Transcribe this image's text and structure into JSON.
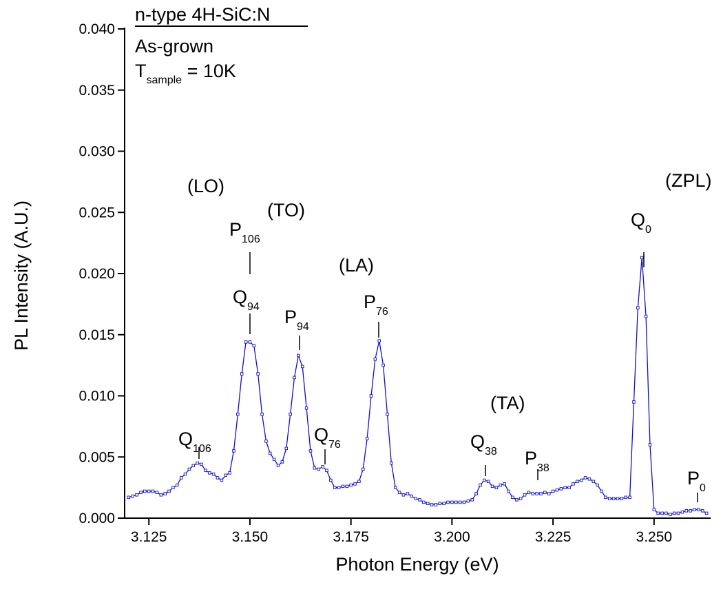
{
  "chart_data": {
    "type": "line",
    "xlabel": "Photon Energy (eV)",
    "ylabel": "PL Intensity (A.U.)",
    "xlim": [
      3.119,
      3.264
    ],
    "ylim": [
      0,
      0.04
    ],
    "xticks": [
      3.125,
      {
        "value": 3.15,
        "label": "3.150"
      },
      3.175,
      {
        "value": 3.2,
        "label": "3.200"
      },
      3.225,
      {
        "value": 3.25,
        "label": "3.250"
      }
    ],
    "yticks": [
      {
        "value": 0,
        "label": "0.000"
      },
      {
        "value": 0.005,
        "label": "0.005"
      },
      {
        "value": 0.01,
        "label": "0.010"
      },
      {
        "value": 0.015,
        "label": "0.015"
      },
      {
        "value": 0.02,
        "label": "0.020"
      },
      {
        "value": 0.025,
        "label": "0.025"
      },
      {
        "value": 0.03,
        "label": "0.030"
      },
      {
        "value": 0.035,
        "label": "0.035"
      },
      {
        "value": 0.04,
        "label": "0.040"
      }
    ],
    "color": "#1010c8",
    "x": [
      3.12,
      3.121,
      3.122,
      3.123,
      3.124,
      3.125,
      3.126,
      3.127,
      3.128,
      3.129,
      3.13,
      3.131,
      3.132,
      3.133,
      3.134,
      3.135,
      3.136,
      3.137,
      3.138,
      3.139,
      3.14,
      3.141,
      3.142,
      3.143,
      3.144,
      3.145,
      3.146,
      3.147,
      3.148,
      3.149,
      3.15,
      3.151,
      3.152,
      3.153,
      3.154,
      3.155,
      3.156,
      3.157,
      3.158,
      3.159,
      3.16,
      3.161,
      3.162,
      3.163,
      3.164,
      3.165,
      3.166,
      3.167,
      3.168,
      3.169,
      3.17,
      3.171,
      3.172,
      3.173,
      3.174,
      3.175,
      3.176,
      3.177,
      3.178,
      3.179,
      3.18,
      3.181,
      3.182,
      3.183,
      3.184,
      3.185,
      3.186,
      3.187,
      3.188,
      3.189,
      3.19,
      3.191,
      3.192,
      3.193,
      3.194,
      3.195,
      3.196,
      3.197,
      3.198,
      3.199,
      3.2,
      3.201,
      3.202,
      3.203,
      3.204,
      3.205,
      3.206,
      3.207,
      3.208,
      3.209,
      3.21,
      3.211,
      3.212,
      3.213,
      3.214,
      3.215,
      3.216,
      3.217,
      3.218,
      3.219,
      3.22,
      3.221,
      3.222,
      3.223,
      3.224,
      3.225,
      3.226,
      3.227,
      3.228,
      3.229,
      3.23,
      3.231,
      3.232,
      3.233,
      3.234,
      3.235,
      3.236,
      3.237,
      3.238,
      3.239,
      3.24,
      3.241,
      3.242,
      3.243,
      3.244,
      3.245,
      3.246,
      3.247,
      3.248,
      3.249,
      3.25,
      3.251,
      3.252,
      3.253,
      3.254,
      3.255,
      3.256,
      3.257,
      3.258,
      3.259,
      3.26,
      3.261,
      3.262,
      3.263
    ],
    "values": [
      0.0017,
      0.0018,
      0.0019,
      0.0021,
      0.0022,
      0.0022,
      0.0022,
      0.0021,
      0.0019,
      0.002,
      0.0022,
      0.0025,
      0.0027,
      0.0033,
      0.0036,
      0.004,
      0.0043,
      0.0045,
      0.0044,
      0.0039,
      0.0037,
      0.0036,
      0.0033,
      0.0031,
      0.0035,
      0.0037,
      0.0055,
      0.0085,
      0.0118,
      0.0144,
      0.0144,
      0.0141,
      0.0118,
      0.0085,
      0.0063,
      0.0053,
      0.0048,
      0.0043,
      0.0046,
      0.0057,
      0.0085,
      0.0115,
      0.0133,
      0.0124,
      0.009,
      0.0055,
      0.0041,
      0.004,
      0.0042,
      0.0039,
      0.0031,
      0.0025,
      0.0025,
      0.0026,
      0.0026,
      0.0027,
      0.0028,
      0.003,
      0.004,
      0.0065,
      0.01,
      0.013,
      0.0145,
      0.0125,
      0.0085,
      0.0045,
      0.0025,
      0.0021,
      0.0019,
      0.002,
      0.0018,
      0.0016,
      0.0015,
      0.0013,
      0.0012,
      0.0011,
      0.0011,
      0.0012,
      0.0012,
      0.0013,
      0.0013,
      0.0013,
      0.0013,
      0.0013,
      0.0014,
      0.0015,
      0.002,
      0.0027,
      0.0031,
      0.003,
      0.0026,
      0.0025,
      0.0027,
      0.0028,
      0.0022,
      0.0017,
      0.0015,
      0.0016,
      0.0019,
      0.0021,
      0.002,
      0.002,
      0.002,
      0.0021,
      0.002,
      0.0022,
      0.0023,
      0.0024,
      0.0025,
      0.0025,
      0.0028,
      0.003,
      0.0031,
      0.0033,
      0.0032,
      0.003,
      0.0027,
      0.0022,
      0.0017,
      0.0016,
      0.0016,
      0.0016,
      0.0016,
      0.0017,
      0.0017,
      0.0095,
      0.0172,
      0.0213,
      0.0165,
      0.006,
      0.0007,
      0.0004,
      0.0004,
      0.0004,
      0.0003,
      0.0004,
      0.0004,
      0.0005,
      0.0006,
      0.0006,
      0.0007,
      0.0007,
      0.0006,
      0.0004
    ],
    "legend_lines": [
      "n-type 4H-SiC:N",
      "As-grown"
    ],
    "temperature": {
      "symbol": "T",
      "sub": "sample",
      "text": " = 10K"
    },
    "phonon_labels": [
      "(LO)",
      "(TO)",
      "(LA)",
      "(TA)",
      "(ZPL)"
    ],
    "annotations": [
      {
        "text": "P",
        "sub": "106"
      },
      {
        "text": "Q",
        "sub": "94"
      },
      {
        "text": "P",
        "sub": "94"
      },
      {
        "text": "P",
        "sub": "76"
      },
      {
        "text": "Q",
        "sub": "106"
      },
      {
        "text": "Q",
        "sub": "76"
      },
      {
        "text": "Q",
        "sub": "38"
      },
      {
        "text": "P",
        "sub": "38"
      },
      {
        "text": "Q",
        "sub": "0"
      },
      {
        "text": "P",
        "sub": "0"
      }
    ]
  }
}
